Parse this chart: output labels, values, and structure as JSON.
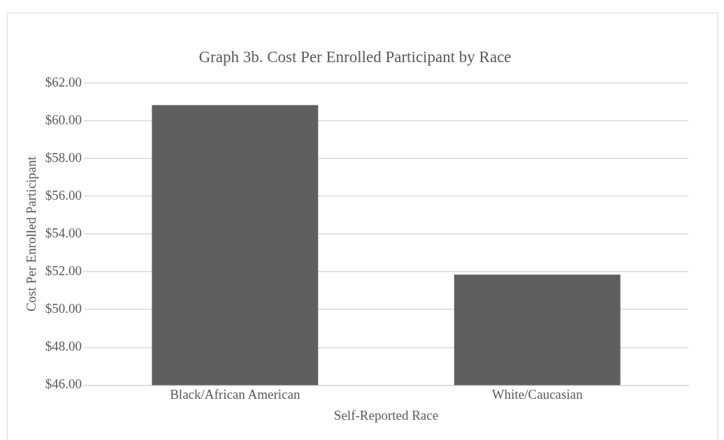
{
  "chart_data": {
    "type": "bar",
    "title": "Graph 3b. Cost Per Enrolled Participant by Race",
    "xlabel": "Self-Reported Race",
    "ylabel": "Cost Per Enrolled Participant",
    "categories": [
      "Black/African American",
      "White/Caucasian"
    ],
    "values": [
      60.82,
      51.85
    ],
    "color": "#5f5f5f",
    "ylim": [
      46,
      62
    ],
    "yticks": [
      {
        "value": 46,
        "label": "$46.00"
      },
      {
        "value": 48,
        "label": "$48.00"
      },
      {
        "value": 50,
        "label": "$50.00"
      },
      {
        "value": 52,
        "label": "$52.00"
      },
      {
        "value": 54,
        "label": "$54.00"
      },
      {
        "value": 56,
        "label": "$56.00"
      },
      {
        "value": 58,
        "label": "$58.00"
      },
      {
        "value": 60,
        "label": "$60.00"
      },
      {
        "value": 62,
        "label": "$62.00"
      }
    ],
    "grid": "y"
  }
}
